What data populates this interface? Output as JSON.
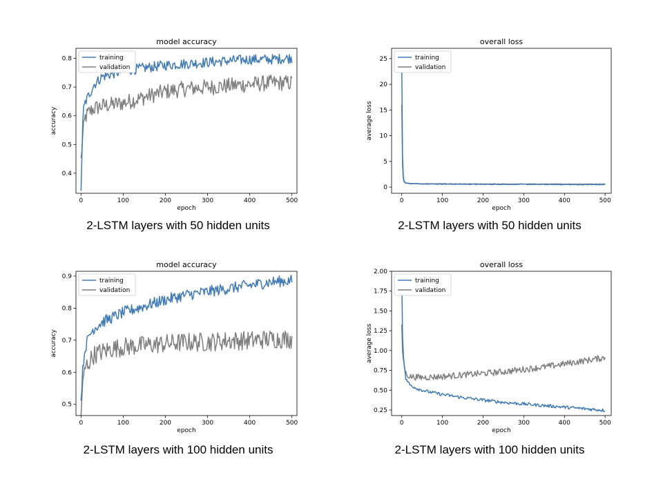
{
  "chart_data": [
    {
      "type": "line",
      "title": "model accuracy",
      "xlabel": "epoch",
      "ylabel": "accuracy",
      "xlim": [
        -12,
        512
      ],
      "ylim": [
        0.33,
        0.835
      ],
      "xticks": [
        0,
        100,
        200,
        300,
        400,
        500
      ],
      "yticks": [
        0.4,
        0.5,
        0.6,
        0.7,
        0.8
      ],
      "legend": "top-left",
      "caption": "2-LSTM layers with 50 hidden units",
      "series": [
        {
          "name": "training",
          "color": "#3f7ab5",
          "x": [
            0,
            5,
            10,
            20,
            30,
            50,
            75,
            100,
            150,
            200,
            250,
            300,
            350,
            400,
            450,
            500
          ],
          "y": [
            0.35,
            0.62,
            0.65,
            0.68,
            0.71,
            0.74,
            0.75,
            0.76,
            0.77,
            0.78,
            0.785,
            0.79,
            0.795,
            0.8,
            0.8,
            0.805
          ]
        },
        {
          "name": "validation",
          "color": "#7f7f7f",
          "x": [
            0,
            5,
            10,
            20,
            30,
            50,
            75,
            100,
            150,
            200,
            250,
            300,
            350,
            400,
            450,
            500
          ],
          "y": [
            0.45,
            0.55,
            0.6,
            0.62,
            0.63,
            0.64,
            0.645,
            0.65,
            0.67,
            0.69,
            0.7,
            0.705,
            0.71,
            0.715,
            0.72,
            0.72
          ]
        }
      ]
    },
    {
      "type": "line",
      "title": "overall loss",
      "xlabel": "epoch",
      "ylabel": "average loss",
      "xlim": [
        -25,
        515
      ],
      "ylim": [
        -1.2,
        27
      ],
      "xticks": [
        0,
        100,
        200,
        300,
        400,
        500
      ],
      "yticks": [
        0,
        5,
        10,
        15,
        20,
        25
      ],
      "legend": "top-left",
      "caption": "2-LSTM layers with 50 hidden units",
      "series": [
        {
          "name": "training",
          "color": "#3f7ab5",
          "x": [
            0,
            1,
            2,
            3,
            5,
            10,
            20,
            50,
            100,
            200,
            300,
            400,
            500
          ],
          "y": [
            24.5,
            16,
            6,
            2.5,
            1.2,
            0.8,
            0.7,
            0.65,
            0.6,
            0.55,
            0.55,
            0.5,
            0.5
          ]
        },
        {
          "name": "validation",
          "color": "#7f7f7f",
          "x": [
            0,
            1,
            2,
            3,
            5,
            10,
            20,
            50,
            100,
            200,
            300,
            400,
            500
          ],
          "y": [
            16,
            10,
            4,
            2,
            1.0,
            0.8,
            0.7,
            0.65,
            0.65,
            0.6,
            0.6,
            0.6,
            0.6
          ]
        }
      ]
    },
    {
      "type": "line",
      "title": "model accuracy",
      "xlabel": "epoch",
      "ylabel": "accuracy",
      "xlim": [
        -12,
        512
      ],
      "ylim": [
        0.465,
        0.915
      ],
      "xticks": [
        0,
        100,
        200,
        300,
        400,
        500
      ],
      "yticks": [
        0.5,
        0.6,
        0.7,
        0.8,
        0.9
      ],
      "legend": "top-left",
      "caption": "2-LSTM layers with 100 hidden units",
      "series": [
        {
          "name": "training",
          "color": "#3f7ab5",
          "x": [
            0,
            5,
            10,
            20,
            30,
            50,
            75,
            100,
            150,
            200,
            250,
            300,
            350,
            400,
            450,
            500
          ],
          "y": [
            0.52,
            0.63,
            0.68,
            0.72,
            0.74,
            0.76,
            0.775,
            0.79,
            0.81,
            0.83,
            0.845,
            0.855,
            0.865,
            0.875,
            0.885,
            0.89
          ]
        },
        {
          "name": "validation",
          "color": "#7f7f7f",
          "x": [
            0,
            5,
            10,
            20,
            30,
            50,
            75,
            100,
            150,
            200,
            250,
            300,
            350,
            400,
            450,
            500
          ],
          "y": [
            0.48,
            0.58,
            0.62,
            0.64,
            0.66,
            0.67,
            0.68,
            0.685,
            0.69,
            0.695,
            0.7,
            0.7,
            0.705,
            0.705,
            0.71,
            0.71
          ]
        }
      ]
    },
    {
      "type": "line",
      "title": "overall loss",
      "xlabel": "epoch",
      "ylabel": "average loss",
      "xlim": [
        -25,
        515
      ],
      "ylim": [
        0.18,
        2.0
      ],
      "xticks": [
        0,
        100,
        200,
        300,
        400,
        500
      ],
      "yticks": [
        0.25,
        0.5,
        0.75,
        1.0,
        1.25,
        1.5,
        1.75,
        2.0
      ],
      "ytick_labels": [
        "0.25",
        "0.50",
        "0.75",
        "1.00",
        "1.25",
        "1.50",
        "1.75",
        "2.00"
      ],
      "legend": "top-left",
      "caption": "2-LSTM layers with 100 hidden units",
      "series": [
        {
          "name": "training",
          "color": "#3f7ab5",
          "x": [
            0,
            2,
            5,
            10,
            20,
            40,
            60,
            100,
            150,
            200,
            250,
            300,
            350,
            400,
            450,
            500
          ],
          "y": [
            1.95,
            1.2,
            0.85,
            0.65,
            0.57,
            0.52,
            0.49,
            0.45,
            0.41,
            0.38,
            0.35,
            0.33,
            0.31,
            0.29,
            0.27,
            0.25
          ]
        },
        {
          "name": "validation",
          "color": "#7f7f7f",
          "x": [
            0,
            2,
            5,
            10,
            20,
            40,
            60,
            100,
            150,
            200,
            250,
            300,
            350,
            400,
            450,
            500
          ],
          "y": [
            1.3,
            1.0,
            0.85,
            0.72,
            0.68,
            0.67,
            0.67,
            0.68,
            0.7,
            0.72,
            0.74,
            0.77,
            0.8,
            0.84,
            0.88,
            0.92
          ]
        }
      ]
    }
  ]
}
